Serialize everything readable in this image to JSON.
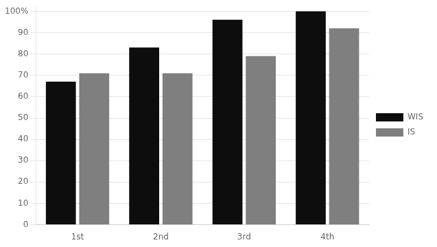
{
  "chart_data": {
    "type": "bar",
    "categories": [
      "1st",
      "2nd",
      "3rd",
      "4th"
    ],
    "series": [
      {
        "name": "WIS",
        "color": "#0d0d0d",
        "values": [
          67,
          83,
          96,
          100
        ]
      },
      {
        "name": "IS",
        "color": "#7f7f7f",
        "values": [
          71,
          71,
          79,
          92
        ]
      }
    ],
    "ylim": [
      0,
      102
    ],
    "yticks": [
      0,
      10,
      20,
      30,
      40,
      50,
      60,
      70,
      80,
      90,
      {
        "value": 100,
        "label": "100%"
      }
    ],
    "grid": true,
    "legend": "right"
  }
}
